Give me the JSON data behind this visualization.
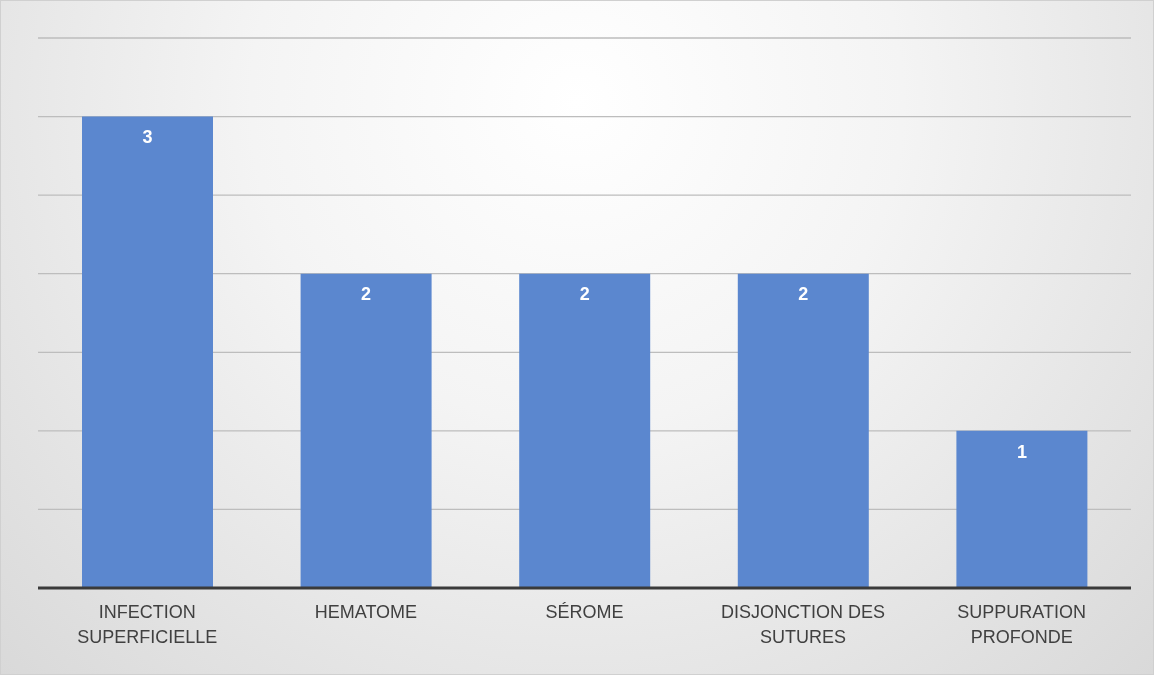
{
  "chart_data": {
    "type": "bar",
    "categories": [
      "INFECTION SUPERFICIELLE",
      "HEMATOME",
      "SÉROME",
      "DISJONCTION DES SUTURES",
      "SUPPURATION PROFONDE"
    ],
    "values": [
      3,
      2,
      2,
      2,
      1
    ],
    "color": "#5b87cf",
    "data_labels": true,
    "grid": "y",
    "tick_labels": "x",
    "ylim": [
      0,
      3.5
    ]
  }
}
